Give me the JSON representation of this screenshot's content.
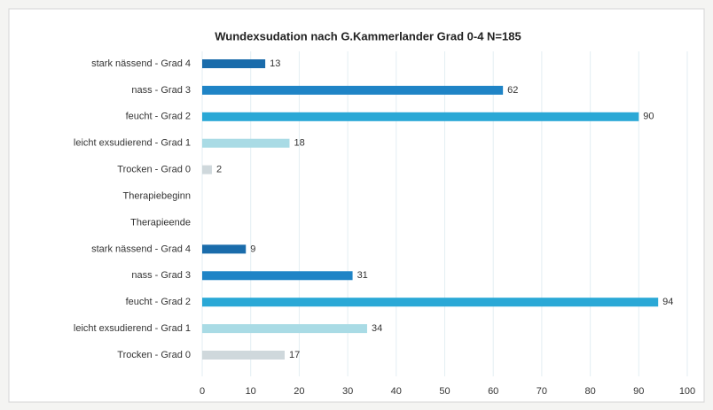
{
  "chart_data": {
    "type": "bar",
    "orientation": "horizontal",
    "title": "Wundexsudation nach G.Kammerlander Grad 0-4 N=185",
    "categories": [
      "stark nässend - Grad 4",
      "nass - Grad 3",
      "feucht - Grad 2",
      "leicht exsudierend - Grad 1",
      "Trocken - Grad 0",
      "Therapiebeginn",
      "Therapieende",
      "stark nässend - Grad 4",
      "nass - Grad 3",
      "feucht - Grad 2",
      "leicht exsudierend - Grad 1",
      "Trocken - Grad 0"
    ],
    "values": [
      13,
      62,
      90,
      18,
      2,
      null,
      null,
      9,
      31,
      94,
      34,
      17
    ],
    "colors": [
      "#1a6cab",
      "#1f84c6",
      "#2aa8d6",
      "#a9dbe5",
      "#cfd8dc",
      "#cccccc",
      "#cccccc",
      "#1a6cab",
      "#1f84c6",
      "#2aa8d6",
      "#a9dbe5",
      "#cfd8dc"
    ],
    "xlim": [
      0,
      100
    ],
    "xticks": [
      0,
      10,
      20,
      30,
      40,
      50,
      60,
      70,
      80,
      90,
      100
    ],
    "grid": true
  }
}
